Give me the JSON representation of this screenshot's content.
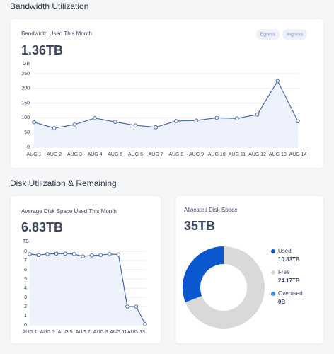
{
  "page": {
    "sections": [
      "Bandwidth Utilization",
      "Disk Utilization & Remaining"
    ]
  },
  "chart_data": [
    {
      "type": "line",
      "title": "Bandwidth Used This Month",
      "headline": "1.36TB",
      "buttons": [
        "Egress",
        "Ingress"
      ],
      "y_label": "GB",
      "categories": [
        "AUG 1",
        "AUG 2",
        "AUG 3",
        "AUG 4",
        "AUG 5",
        "AUG 6",
        "AUG 7",
        "AUG 8",
        "AUG 9",
        "AUG 10",
        "AUG 11",
        "AUG 12",
        "AUG 13",
        "AUG 14"
      ],
      "values": [
        85,
        65,
        77,
        99,
        86,
        74,
        68,
        89,
        91,
        100,
        98,
        111,
        225,
        88
      ],
      "color": "#4a6aa8",
      "fill": "#eef2fc",
      "ylim": [
        0,
        250
      ],
      "yticks": [
        0,
        50,
        100,
        150,
        200,
        250
      ],
      "grid": true
    },
    {
      "type": "line",
      "title": "Average Disk Space Used This Month",
      "headline": "6.83TB",
      "y_label": "TB",
      "categories": [
        "AUG 1",
        null,
        "AUG 3",
        null,
        "AUG 5",
        null,
        "AUG 7",
        null,
        "AUG 9",
        null,
        "AUG 11",
        null,
        "AUG 13",
        null
      ],
      "values": [
        7.7,
        7.6,
        7.7,
        7.75,
        7.75,
        7.7,
        7.45,
        7.55,
        7.6,
        7.7,
        7.65,
        2.0,
        2.0,
        0.1
      ],
      "color": "#4a6aa8",
      "fill": "#eef2fc",
      "ylim": [
        0,
        8
      ],
      "yticks": [
        0,
        1,
        2,
        3,
        4,
        5,
        6,
        7,
        8
      ],
      "grid": true
    },
    {
      "type": "pie",
      "title": "Allocated Disk Space",
      "headline": "35TB",
      "categories": [
        "Used",
        "Free",
        "Overused"
      ],
      "values": [
        10.83,
        24.17,
        0
      ],
      "value_labels": [
        "10.83TB",
        "24.17TB",
        "0B"
      ],
      "colors": [
        "#0b57d0",
        "#d9d9d9",
        "#3b8ef0"
      ]
    }
  ]
}
